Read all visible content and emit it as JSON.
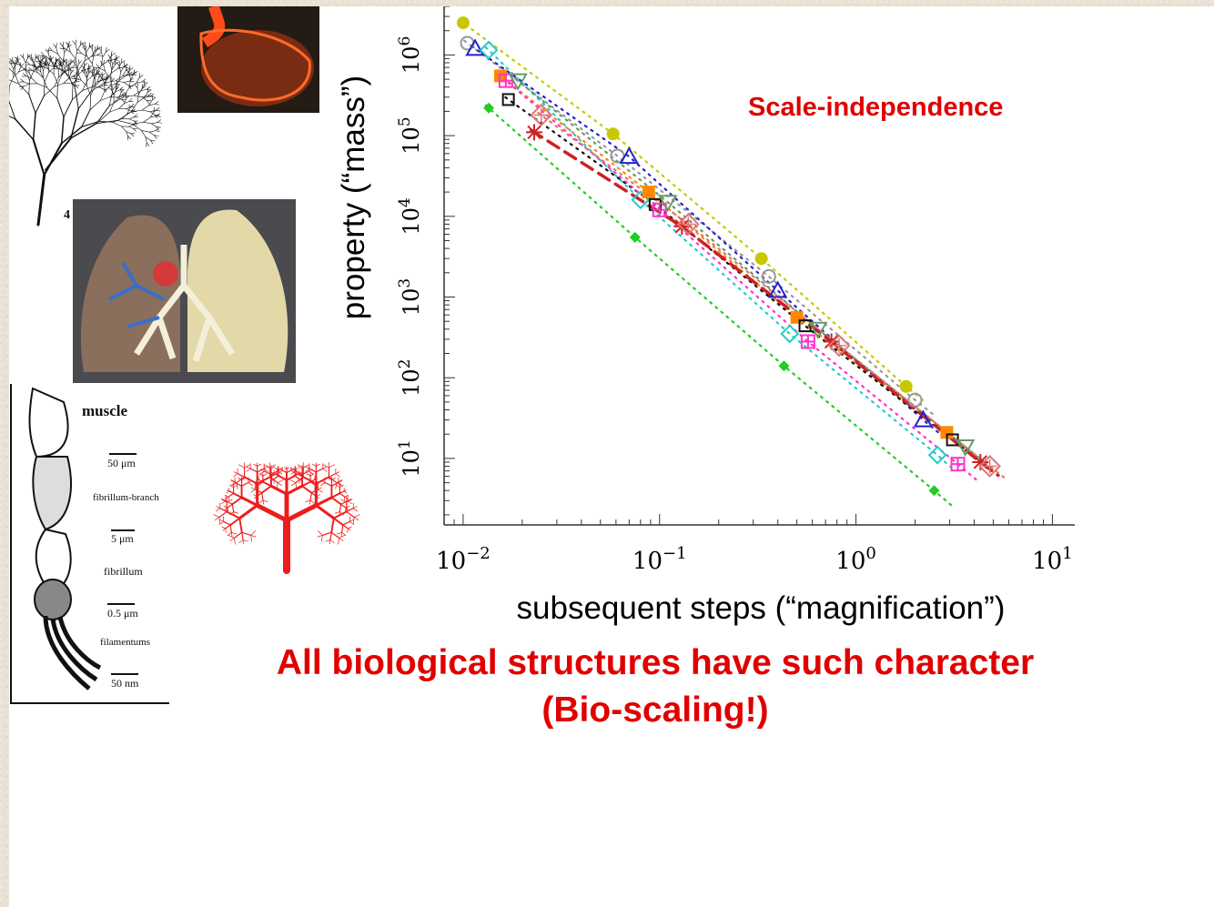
{
  "slide": {
    "annotation": "Scale-independence",
    "caption_line1": "All biological structures have such character",
    "caption_line2": "(Bio-scaling!)"
  },
  "muscle_figure": {
    "title": "muscle",
    "labels": [
      "50 μm",
      "fibrillum-branch",
      "5 μm",
      "fibrillum",
      "0.5 μm",
      "filamentums",
      "50 nm"
    ],
    "tree_figure_number": "4"
  },
  "chart_data": {
    "type": "scatter",
    "scale": "log-log",
    "xlabel": "subsequent steps (“magnification”)",
    "ylabel": "property (“mass”)",
    "xlim": [
      0.008,
      13
    ],
    "ylim": [
      1.5,
      4000000
    ],
    "x_ticks": [
      {
        "value": 0.01,
        "base": "10",
        "exp": "−2"
      },
      {
        "value": 0.1,
        "base": "10",
        "exp": "−1"
      },
      {
        "value": 1,
        "base": "10",
        "exp": "0"
      },
      {
        "value": 10,
        "base": "10",
        "exp": "1"
      }
    ],
    "y_ticks": [
      {
        "value": 10,
        "base": "10",
        "exp": "1"
      },
      {
        "value": 100,
        "base": "10",
        "exp": "2"
      },
      {
        "value": 1000,
        "base": "10",
        "exp": "3"
      },
      {
        "value": 10000,
        "base": "10",
        "exp": "4"
      },
      {
        "value": 100000,
        "base": "10",
        "exp": "5"
      },
      {
        "value": 1000000,
        "base": "10",
        "exp": "6"
      }
    ],
    "grid": false,
    "legend": "none",
    "series": [
      {
        "marker": "circle-filled",
        "color": "#c8c800",
        "line": "dotted",
        "x": [
          0.01,
          0.058,
          0.33,
          1.8
        ],
        "y": [
          2500000,
          105000,
          3000,
          78
        ]
      },
      {
        "marker": "circle-open",
        "color": "#999999",
        "line": "dotted",
        "x": [
          0.0105,
          0.061,
          0.36,
          2.0
        ],
        "y": [
          1400000,
          56000,
          1800,
          53
        ]
      },
      {
        "marker": "triangle-up",
        "color": "#2222cc",
        "line": "dotted",
        "x": [
          0.0115,
          0.07,
          0.4,
          2.2
        ],
        "y": [
          1200000,
          55000,
          1200,
          30
        ]
      },
      {
        "marker": "diamond-open",
        "color": "#22cccc",
        "line": "dotted",
        "x": [
          0.0135,
          0.08,
          0.46,
          2.6
        ],
        "y": [
          1150000,
          16000,
          350,
          11
        ]
      },
      {
        "marker": "square-filled",
        "color": "#ff8800",
        "line": "dotted",
        "x": [
          0.0155,
          0.088,
          0.5,
          2.9
        ],
        "y": [
          550000,
          20000,
          560,
          21
        ]
      },
      {
        "marker": "square-open",
        "color": "#111111",
        "line": "dotted",
        "x": [
          0.017,
          0.095,
          0.55,
          3.1
        ],
        "y": [
          280000,
          14000,
          440,
          17
        ]
      },
      {
        "marker": "square-plus",
        "color": "#ff33cc",
        "line": "dotted",
        "x": [
          0.0165,
          0.1,
          0.57,
          3.3
        ],
        "y": [
          480000,
          12000,
          280,
          8.5
        ]
      },
      {
        "marker": "triangle-down",
        "color": "#669966",
        "line": "dotted",
        "x": [
          0.019,
          0.11,
          0.64,
          3.6
        ],
        "y": [
          480000,
          15000,
          400,
          14
        ]
      },
      {
        "marker": "star",
        "color": "#cc2222",
        "line": "dashed",
        "x": [
          0.023,
          0.13,
          0.75,
          4.3
        ],
        "y": [
          110000,
          7500,
          280,
          9
        ]
      },
      {
        "marker": "diamond-star",
        "color": "#dd7777",
        "line": "dotted",
        "x": [
          0.025,
          0.14,
          0.82,
          4.8
        ],
        "y": [
          180000,
          8000,
          250,
          8
        ]
      },
      {
        "marker": "diamond-filled",
        "color": "#22cc22",
        "line": "dotted",
        "x": [
          0.0135,
          0.075,
          0.43,
          2.5
        ],
        "y": [
          220000,
          5500,
          140,
          4
        ]
      }
    ]
  },
  "colors": {
    "accent_red": "#e00000",
    "slide_background": "#ffffff",
    "frame_texture": "#e9e2d4"
  },
  "icons": [
    "capillary-tree-icon",
    "heart-cast-icon",
    "lung-cast-icon",
    "muscle-fibre-icon",
    "fractal-tree-icon"
  ]
}
